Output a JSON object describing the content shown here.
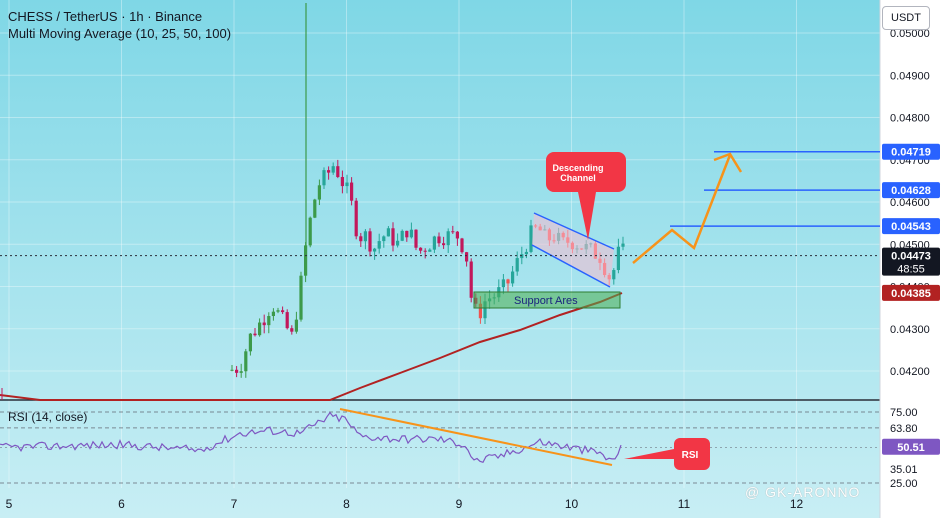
{
  "header": {
    "title": "CHESS / TetherUS · 1h · Binance",
    "indicator": "Multi Moving Average (10, 25, 50, 100)"
  },
  "currency": "USDT",
  "rsi_label": "RSI (14, close)",
  "watermark": "@ GK-ARONNO",
  "colors": {
    "background_top": "#7fd7e6",
    "background_bottom": "#c6eef4",
    "up_candle": "#26a69a",
    "up_candle_alt": "#3c9a4a",
    "down_candle": "#ef5350",
    "down_candle_alt": "#c2185b",
    "ma_line": "#b22222",
    "rsi_line": "#7e57c2",
    "arrow": "#f7931a",
    "target_line": "#2962ff",
    "callout": "#f23645",
    "support_box": "#4caf50",
    "channel_fill": "#f8bbd0",
    "channel_line": "#2962ff"
  },
  "chart_data": [
    {
      "type": "candlestick",
      "x_ticks": [
        "5",
        "6",
        "7",
        "8",
        "9",
        "10",
        "11",
        "12"
      ],
      "y_ticks": [
        "0.05000",
        "0.04900",
        "0.04800",
        "0.04700",
        "0.04600",
        "0.04500",
        "0.04400",
        "0.04300",
        "0.04200"
      ],
      "ylim": [
        0.0415,
        0.0509
      ],
      "price_labels": [
        {
          "label": "0.04719",
          "value": 0.04719,
          "color": "#2962ff"
        },
        {
          "label": "0.04628",
          "value": 0.04628,
          "color": "#2962ff"
        },
        {
          "label": "0.04543",
          "value": 0.04543,
          "color": "#2962ff"
        },
        {
          "label": "0.04473",
          "value": 0.04473,
          "color": "#131722"
        },
        {
          "label": "0.04385",
          "value": 0.04385,
          "color": "#b22222"
        }
      ],
      "countdown": "48:55",
      "annotations": {
        "descending_channel": "Descending\nChannel",
        "support_area": "Support Ares"
      },
      "target_levels": [
        0.04719,
        0.04628,
        0.04543
      ]
    },
    {
      "type": "line",
      "name": "RSI (14, close)",
      "y_ticks": [
        "75.00",
        "63.80",
        "35.01",
        "25.00"
      ],
      "current_label": "50.51",
      "ylim": [
        20,
        80
      ],
      "annotation": "RSI"
    }
  ]
}
